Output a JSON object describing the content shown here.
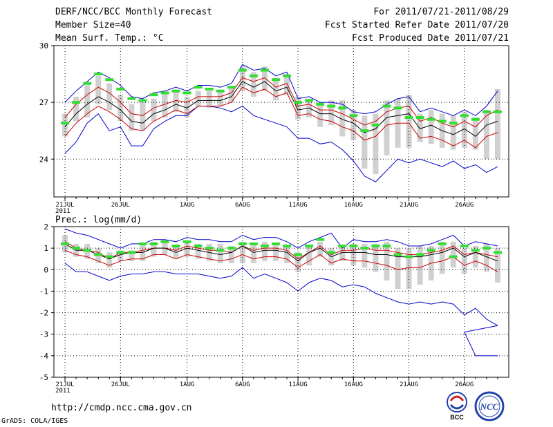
{
  "header": {
    "title": "DERF/NCC/BCC Monthly Forecast",
    "member_size": "Member Size=40",
    "variable": "Mean Surf. Temp.: °C",
    "forecast_range": "For 2011/07/21-2011/08/29",
    "start_date": "Fcst Started Refer Date 2011/07/20",
    "produced_date": "Fcst Produced Date 2011/07/21"
  },
  "footer": {
    "url": "http://cmdp.ncc.cma.gov.cn",
    "credit": "GrADS: COLA/IGES",
    "logo_bcc": "BCC",
    "logo_ncc": "NCC"
  },
  "colors": {
    "blue": "#0000cc",
    "red": "#cc0000",
    "black": "#000000",
    "green": "#33dd33",
    "box": "#d0d0d0",
    "grid": "#000000"
  },
  "chart_data": [
    {
      "type": "line",
      "title": "Mean Surf. Temp.: °C",
      "ylim": [
        22,
        30
      ],
      "yticks": [
        24,
        27,
        30
      ],
      "grid": true,
      "x_day_range": [
        1,
        40
      ],
      "xticks": [
        {
          "day": 1,
          "label": "21JUL"
        },
        {
          "day": 6,
          "label": "26JUL"
        },
        {
          "day": 12,
          "label": "1AUG"
        },
        {
          "day": 17,
          "label": "6AUG"
        },
        {
          "day": 22,
          "label": "11AUG"
        },
        {
          "day": 27,
          "label": "16AUG"
        },
        {
          "day": 32,
          "label": "21AUG"
        },
        {
          "day": 37,
          "label": "26AUG"
        }
      ],
      "x_sublabel": "2011",
      "series": [
        {
          "name": "max",
          "color": "blue",
          "values": [
            27.0,
            27.6,
            28.1,
            28.6,
            28.3,
            27.9,
            27.3,
            27.2,
            27.5,
            27.6,
            27.8,
            27.6,
            27.9,
            27.9,
            27.8,
            28.0,
            29.0,
            28.7,
            28.8,
            28.4,
            28.6,
            27.2,
            27.3,
            27.0,
            27.0,
            26.9,
            26.5,
            26.4,
            26.5,
            26.9,
            27.2,
            27.3,
            26.5,
            26.7,
            26.5,
            26.3,
            26.6,
            26.3,
            26.8,
            27.6
          ]
        },
        {
          "name": "p75",
          "color": "red",
          "values": [
            26.2,
            26.9,
            27.4,
            27.8,
            27.5,
            27.0,
            26.4,
            26.3,
            26.7,
            26.9,
            27.1,
            27.0,
            27.3,
            27.3,
            27.3,
            27.5,
            28.3,
            28.1,
            28.3,
            27.8,
            28.0,
            26.8,
            26.9,
            26.6,
            26.6,
            26.4,
            26.1,
            25.8,
            26.0,
            26.5,
            26.7,
            26.8,
            26.0,
            26.2,
            25.9,
            25.7,
            26.0,
            25.7,
            26.3,
            26.6
          ]
        },
        {
          "name": "mean",
          "color": "black",
          "values": [
            25.7,
            26.4,
            26.9,
            27.3,
            27.0,
            26.6,
            26.0,
            25.9,
            26.4,
            26.6,
            26.9,
            26.7,
            27.1,
            27.1,
            27.1,
            27.3,
            28.1,
            27.8,
            28.1,
            27.6,
            27.8,
            26.6,
            26.7,
            26.4,
            26.4,
            26.1,
            25.9,
            25.4,
            25.6,
            26.2,
            26.3,
            26.4,
            25.6,
            25.8,
            25.5,
            25.3,
            25.6,
            25.2,
            25.8,
            26.0
          ]
        },
        {
          "name": "p25",
          "color": "red",
          "values": [
            25.2,
            25.9,
            26.4,
            26.8,
            26.5,
            26.1,
            25.6,
            25.5,
            26.0,
            26.3,
            26.6,
            26.4,
            26.8,
            26.8,
            26.8,
            27.0,
            27.8,
            27.5,
            27.7,
            27.3,
            27.5,
            26.3,
            26.4,
            26.1,
            26.0,
            25.7,
            25.5,
            25.0,
            25.2,
            25.8,
            25.9,
            25.9,
            25.1,
            25.2,
            25.0,
            24.7,
            25.0,
            24.6,
            25.2,
            25.4
          ]
        },
        {
          "name": "min",
          "color": "blue",
          "values": [
            24.3,
            24.9,
            25.9,
            26.4,
            25.5,
            25.7,
            24.7,
            24.7,
            25.6,
            26.0,
            26.3,
            26.3,
            26.8,
            26.8,
            26.7,
            26.5,
            26.8,
            26.3,
            26.1,
            25.9,
            25.7,
            25.1,
            25.1,
            24.8,
            24.9,
            24.5,
            23.9,
            23.1,
            22.8,
            23.4,
            24.0,
            23.8,
            24.0,
            23.8,
            23.6,
            23.9,
            23.5,
            23.7,
            23.3,
            23.6
          ]
        },
        {
          "name": "green_marker",
          "color": "green",
          "values": [
            25.9,
            27.0,
            28.0,
            28.5,
            28.2,
            27.7,
            27.2,
            27.1,
            27.4,
            27.5,
            27.6,
            27.5,
            27.8,
            27.7,
            27.6,
            27.8,
            28.7,
            28.4,
            28.7,
            28.2,
            28.4,
            27.0,
            27.1,
            26.9,
            26.8,
            26.7,
            26.3,
            25.5,
            25.8,
            26.8,
            26.7,
            26.2,
            26.2,
            26.1,
            26.0,
            25.9,
            26.3,
            26.1,
            26.5,
            26.5
          ]
        },
        {
          "name": "box_top",
          "color": "box",
          "values": [
            26.4,
            27.3,
            27.9,
            28.4,
            28.0,
            27.4,
            26.9,
            27.0,
            27.2,
            27.5,
            27.6,
            27.3,
            27.6,
            27.6,
            27.6,
            27.8,
            28.9,
            28.6,
            28.9,
            28.3,
            28.5,
            27.3,
            27.2,
            27.0,
            27.1,
            27.1,
            26.6,
            26.3,
            26.4,
            27.1,
            27.2,
            27.4,
            26.4,
            26.6,
            26.4,
            26.3,
            26.5,
            26.2,
            26.6,
            27.7
          ]
        },
        {
          "name": "box_bottom",
          "color": "box",
          "values": [
            25.2,
            26.0,
            26.2,
            26.9,
            26.6,
            26.0,
            25.5,
            25.5,
            26.0,
            26.2,
            26.5,
            26.2,
            26.8,
            26.7,
            26.8,
            27.0,
            27.6,
            27.3,
            27.6,
            27.1,
            27.4,
            26.1,
            26.2,
            25.7,
            25.8,
            25.2,
            25.0,
            23.5,
            23.2,
            24.2,
            24.6,
            24.6,
            24.9,
            24.8,
            24.6,
            24.5,
            24.6,
            24.5,
            24.0,
            24.0
          ]
        }
      ]
    },
    {
      "type": "line",
      "title": "Prec.: log(mm/d)",
      "ylim": [
        -5,
        2
      ],
      "yticks": [
        -5,
        -4,
        -3,
        -2,
        -1,
        0,
        1,
        2
      ],
      "grid": true,
      "x_day_range": [
        1,
        40
      ],
      "xticks": [
        {
          "day": 1,
          "label": "21JUL"
        },
        {
          "day": 6,
          "label": "26JUL"
        },
        {
          "day": 12,
          "label": "1AUG"
        },
        {
          "day": 17,
          "label": "6AUG"
        },
        {
          "day": 22,
          "label": "11AUG"
        },
        {
          "day": 27,
          "label": "16AUG"
        },
        {
          "day": 32,
          "label": "21AUG"
        },
        {
          "day": 37,
          "label": "26AUG"
        }
      ],
      "x_sublabel": "2011",
      "series": [
        {
          "name": "max",
          "color": "blue",
          "values": [
            1.9,
            1.7,
            1.6,
            1.4,
            1.2,
            1.0,
            1.2,
            1.2,
            1.4,
            1.4,
            1.3,
            1.5,
            1.4,
            1.4,
            1.3,
            1.3,
            1.6,
            1.4,
            1.5,
            1.5,
            1.3,
            1.0,
            1.3,
            1.5,
            1.7,
            1.0,
            1.4,
            1.3,
            1.3,
            1.4,
            1.3,
            1.1,
            1.1,
            1.2,
            1.4,
            1.6,
            1.1,
            1.3,
            1.2,
            1.1
          ]
        },
        {
          "name": "p75",
          "color": "red",
          "values": [
            1.3,
            1.0,
            0.9,
            0.8,
            0.5,
            0.8,
            0.8,
            0.9,
            1.0,
            1.0,
            0.9,
            1.1,
            1.0,
            0.9,
            0.9,
            0.8,
            1.1,
            0.9,
            1.0,
            1.0,
            0.9,
            0.5,
            0.8,
            1.1,
            0.7,
            0.9,
            0.9,
            1.0,
            0.9,
            0.9,
            0.8,
            0.7,
            0.7,
            0.8,
            0.9,
            1.1,
            0.7,
            0.8,
            0.7,
            0.6
          ]
        },
        {
          "name": "mean",
          "color": "black",
          "values": [
            1.2,
            0.9,
            0.9,
            0.7,
            0.5,
            0.7,
            0.8,
            0.8,
            1.0,
            1.0,
            0.8,
            1.0,
            0.9,
            0.8,
            0.7,
            0.8,
            1.1,
            0.8,
            0.9,
            0.9,
            0.8,
            0.4,
            0.8,
            1.0,
            0.6,
            0.8,
            0.8,
            0.8,
            0.7,
            0.7,
            0.6,
            0.6,
            0.6,
            0.7,
            0.8,
            1.0,
            0.6,
            0.8,
            0.6,
            0.4
          ]
        },
        {
          "name": "p25",
          "color": "red",
          "values": [
            0.9,
            0.7,
            0.6,
            0.4,
            0.2,
            0.4,
            0.5,
            0.5,
            0.7,
            0.7,
            0.5,
            0.7,
            0.6,
            0.5,
            0.4,
            0.5,
            0.7,
            0.5,
            0.6,
            0.6,
            0.5,
            0.1,
            0.4,
            0.7,
            0.3,
            0.5,
            0.4,
            0.4,
            0.3,
            0.2,
            0.0,
            0.1,
            0.1,
            0.3,
            0.4,
            0.6,
            0.2,
            0.4,
            0.2,
            -0.1
          ]
        },
        {
          "name": "min",
          "color": "blue",
          "values": [
            0.3,
            -0.1,
            -0.1,
            -0.3,
            -0.5,
            -0.3,
            -0.2,
            -0.2,
            -0.1,
            -0.1,
            -0.2,
            -0.2,
            -0.2,
            -0.3,
            -0.4,
            -0.3,
            0.1,
            -0.4,
            -0.2,
            -0.4,
            -0.6,
            -1.0,
            -0.6,
            -0.4,
            -0.5,
            -0.8,
            -0.7,
            -0.8,
            -1.1,
            -1.3,
            -1.5,
            -1.6,
            -1.5,
            -1.6,
            -1.5,
            -1.6,
            -2.1,
            -1.8,
            -2.3,
            -2.6
          ]
        },
        {
          "name": "min_tail",
          "color": "blue",
          "note": "continuation near end",
          "values": [
            -4.0,
            -4.0
          ]
        },
        {
          "name": "green_marker",
          "color": "green",
          "values": [
            1.2,
            1.0,
            0.9,
            0.7,
            0.6,
            0.8,
            0.8,
            1.2,
            1.2,
            1.3,
            1.1,
            1.3,
            1.1,
            1.0,
            0.9,
            1.0,
            1.2,
            1.2,
            1.1,
            1.2,
            1.1,
            0.7,
            1.1,
            1.4,
            0.8,
            1.1,
            1.1,
            1.0,
            1.1,
            1.1,
            0.7,
            0.6,
            0.7,
            0.9,
            1.2,
            0.6,
            1.1,
            0.9,
            1.0,
            0.8
          ]
        },
        {
          "name": "box_top",
          "color": "box",
          "values": [
            1.6,
            1.2,
            1.2,
            1.0,
            0.8,
            0.9,
            0.9,
            1.2,
            1.3,
            1.3,
            1.1,
            1.3,
            1.2,
            1.2,
            1.2,
            1.1,
            1.3,
            1.2,
            1.3,
            1.2,
            1.1,
            0.8,
            1.1,
            1.3,
            1.0,
            1.1,
            1.2,
            1.2,
            1.2,
            1.3,
            1.0,
            1.0,
            1.1,
            1.1,
            1.3,
            1.3,
            1.0,
            1.1,
            1.2,
            1.0
          ]
        },
        {
          "name": "box_bottom",
          "color": "box",
          "values": [
            0.8,
            0.6,
            0.5,
            0.3,
            0.1,
            0.4,
            0.4,
            0.4,
            0.6,
            0.7,
            0.5,
            0.6,
            0.5,
            0.4,
            0.3,
            0.3,
            0.3,
            0.3,
            0.4,
            0.4,
            0.3,
            -0.1,
            0.2,
            0.6,
            0.2,
            0.4,
            0.2,
            0.1,
            -0.1,
            -0.5,
            -0.9,
            -0.9,
            -0.7,
            -0.5,
            -0.2,
            0.1,
            -0.2,
            0.1,
            -0.1,
            -0.6
          ]
        }
      ]
    }
  ]
}
